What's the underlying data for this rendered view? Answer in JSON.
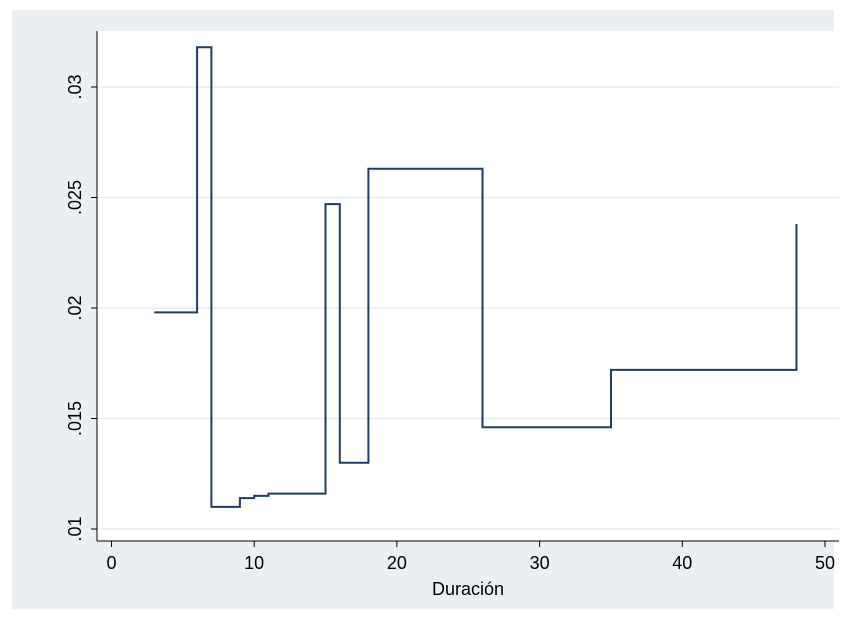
{
  "chart_data": {
    "type": "line",
    "step": true,
    "title": "",
    "xlabel": "Duración",
    "ylabel": "",
    "xlim": [
      0,
      50
    ],
    "ylim": [
      0.01,
      0.0325
    ],
    "x_ticks": [
      0,
      10,
      20,
      30,
      40,
      50
    ],
    "x_tick_labels": [
      "0",
      "10",
      "20",
      "30",
      "40",
      "50"
    ],
    "y_ticks": [
      0.01,
      0.015,
      0.02,
      0.025,
      0.03
    ],
    "y_tick_labels": [
      ".01",
      ".015",
      ".02",
      ".025",
      ".03"
    ],
    "grid": true,
    "colors": {
      "line": "#1f3d63",
      "background": "#eaf0f2",
      "plot": "#ffffff",
      "grid": "#e6eef2"
    },
    "series": [
      {
        "x": [
          3,
          6,
          6,
          7,
          7,
          9,
          9,
          10,
          10,
          11,
          11,
          15,
          15,
          16,
          16,
          18,
          18,
          26,
          26,
          35,
          35,
          48,
          48
        ],
        "y": [
          0.0198,
          0.0198,
          0.0318,
          0.0318,
          0.011,
          0.011,
          0.0114,
          0.0114,
          0.0115,
          0.0115,
          0.0116,
          0.0116,
          0.0247,
          0.0247,
          0.013,
          0.013,
          0.0263,
          0.0263,
          0.0146,
          0.0146,
          0.0172,
          0.0172,
          0.0238
        ]
      }
    ]
  }
}
